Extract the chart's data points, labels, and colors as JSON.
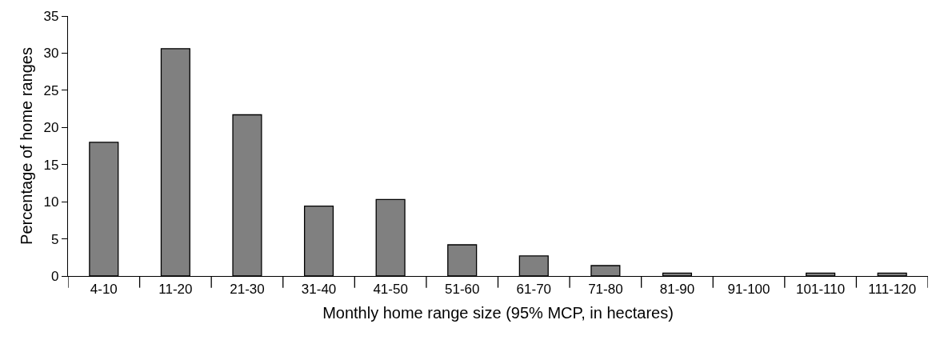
{
  "chart_data": {
    "type": "bar",
    "xlabel": "Monthly home range size (95% MCP, in hectares)",
    "ylabel": "Percentage of home ranges",
    "categories": [
      "4-10",
      "11-20",
      "21-30",
      "31-40",
      "41-50",
      "51-60",
      "61-70",
      "71-80",
      "81-90",
      "91-100",
      "101-110",
      "111-120"
    ],
    "values": [
      18.0,
      30.6,
      21.7,
      9.4,
      10.3,
      4.2,
      2.7,
      1.4,
      0.4,
      0,
      0.4,
      0.4
    ],
    "color": "#808080",
    "ylim": [
      0,
      35
    ],
    "yticks": [
      0,
      5,
      10,
      15,
      20,
      25,
      30,
      35
    ],
    "grid": false
  }
}
